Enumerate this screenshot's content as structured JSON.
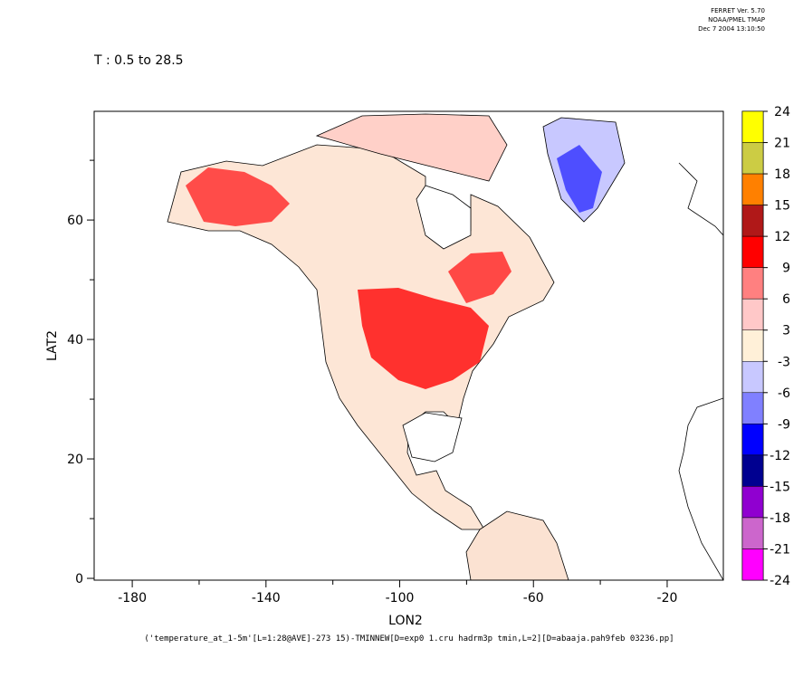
{
  "header": {
    "software": "FERRET Ver. 5.70",
    "org": "NOAA/PMEL TMAP",
    "timestamp": "Dec  7 2004 13:10:50"
  },
  "chart_data": {
    "type": "map",
    "title": "T : 0.5 to 28.5",
    "x_label": "LON2",
    "y_label": "LAT2",
    "caption": "('temperature_at_1-5m'[L=1:28@AVE]-273 15)-TMINNEW[D=exp0 1.cru hadrm3p tmin,L=2][D=abaaja.pah9feb 03236.pp]",
    "xlim": [
      -191.4,
      -3.2
    ],
    "ylim": [
      -0.3,
      78.2
    ],
    "xticks": [
      -180,
      -140,
      -100,
      -60,
      -20
    ],
    "xminorticks": [
      -160,
      -120,
      -80,
      -40
    ],
    "yticks": [
      0,
      20,
      40,
      60
    ],
    "yminorticks": [
      10,
      30,
      50,
      70
    ],
    "colorbar": {
      "levels": [
        24,
        21,
        18,
        15,
        12,
        9,
        6,
        3,
        -3,
        -6,
        -9,
        -12,
        -15,
        -18,
        -21,
        -24
      ],
      "colors": [
        "#ffff00",
        "#cccc44",
        "#ff8000",
        "#b01818",
        "#ff0000",
        "#ff8080",
        "#ffc8c8",
        "#fff0d8",
        "#c8c8ff",
        "#8080ff",
        "#0000ff",
        "#000090",
        "#9000d0",
        "#cc66cc",
        "#ff00ff"
      ]
    }
  }
}
